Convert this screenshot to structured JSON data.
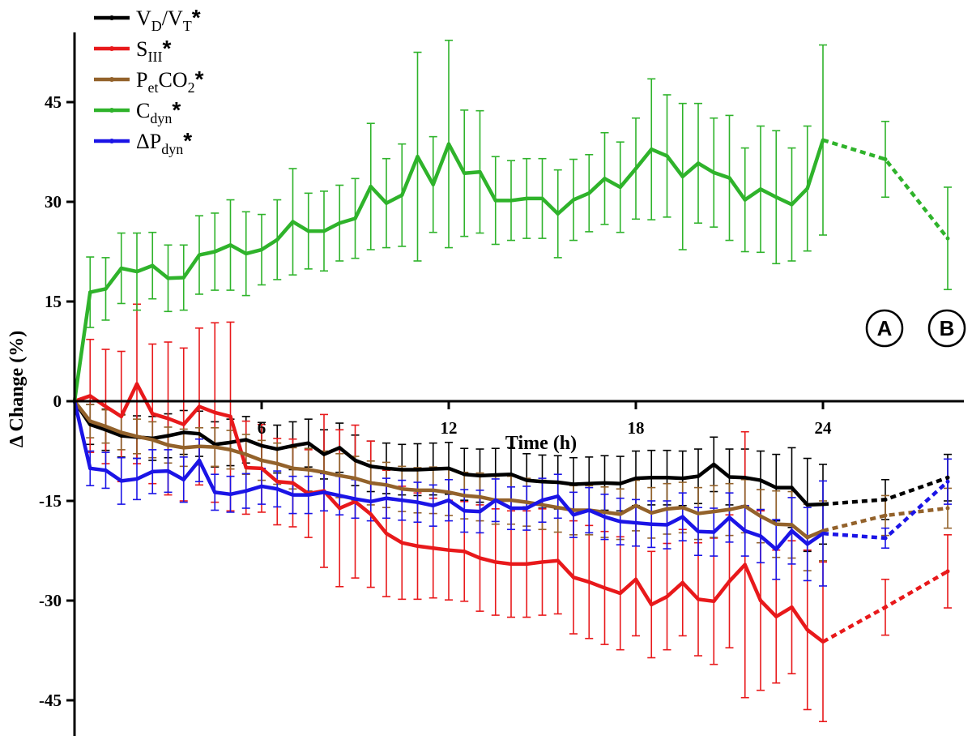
{
  "chart_data": {
    "type": "line",
    "xlabel": "Time (h)",
    "ylabel": "Δ Change (%)",
    "xlim": [
      0,
      28.5
    ],
    "ylim": [
      -50,
      57
    ],
    "x_ticks": [
      6,
      12,
      18,
      24
    ],
    "y_ticks": [
      -45,
      -30,
      -15,
      0,
      15,
      30,
      45
    ],
    "legend_position": "top-left",
    "x": [
      0,
      0.5,
      1,
      1.5,
      2,
      2.5,
      3,
      3.5,
      4,
      4.5,
      5,
      5.5,
      6,
      6.5,
      7,
      7.5,
      8,
      8.5,
      9,
      9.5,
      10,
      10.5,
      11,
      11.5,
      12,
      12.5,
      13,
      13.5,
      14,
      14.5,
      15,
      15.5,
      16,
      16.5,
      17,
      17.5,
      18,
      18.5,
      19,
      19.5,
      20,
      20.5,
      21,
      21.5,
      22,
      22.5,
      23,
      23.5,
      24
    ],
    "extension_x": [
      24,
      26,
      28
    ],
    "markers": [
      {
        "label": "A",
        "x": 26
      },
      {
        "label": "B",
        "x": 28
      }
    ],
    "series": [
      {
        "name": "VD/VT",
        "label": {
          "main": "V",
          "sub1": "D",
          "mid": "/V",
          "sub2": "T",
          "star": "*"
        },
        "color": "#000000",
        "values": [
          0,
          -3.5,
          -4.3,
          -5.2,
          -5.4,
          -5.6,
          -5.2,
          -4.7,
          -4.9,
          -6.5,
          -6.2,
          -5.8,
          -6.7,
          -7.2,
          -6.7,
          -6.3,
          -8.0,
          -7.0,
          -8.9,
          -9.8,
          -10.1,
          -10.3,
          -10.3,
          -10.2,
          -10.1,
          -11.0,
          -11.2,
          -11.1,
          -11.0,
          -11.9,
          -12.1,
          -12.2,
          -12.5,
          -12.4,
          -12.3,
          -12.4,
          -11.6,
          -11.5,
          -11.5,
          -11.6,
          -11.3,
          -9.5,
          -11.4,
          -11.5,
          -11.9,
          -13.0,
          -13.0,
          -15.6,
          -15.5
        ],
        "errors": [
          0,
          3.0,
          3.1,
          3.2,
          3.2,
          3.3,
          3.3,
          3.3,
          3.4,
          3.4,
          3.5,
          3.5,
          3.5,
          3.6,
          3.6,
          3.6,
          3.7,
          3.7,
          3.8,
          3.8,
          3.8,
          3.8,
          3.9,
          3.9,
          3.9,
          3.9,
          4.0,
          4.0,
          4.0,
          4.0,
          4.0,
          4.0,
          4.0,
          4.0,
          4.1,
          4.1,
          4.1,
          4.1,
          4.1,
          4.1,
          4.1,
          4.1,
          4.2,
          4.3,
          4.4,
          5.0,
          6.0,
          7.0,
          6.0
        ],
        "extension_values": [
          -15.5,
          -14.8,
          -11.5
        ],
        "extension_errors": [
          6.0,
          3.0,
          3.5
        ]
      },
      {
        "name": "SIII",
        "label": {
          "main": "S",
          "sub1": "III",
          "mid": "",
          "sub2": "",
          "star": "*"
        },
        "color": "#e8191b",
        "values": [
          0,
          0.8,
          -0.8,
          -2.3,
          2.6,
          -1.9,
          -2.6,
          -3.5,
          -0.8,
          -1.7,
          -2.3,
          -10.0,
          -10.1,
          -12.1,
          -12.3,
          -13.9,
          -13.5,
          -16.1,
          -15.1,
          -17.0,
          -19.9,
          -21.3,
          -21.8,
          -22.1,
          -22.4,
          -22.6,
          -23.6,
          -24.2,
          -24.5,
          -24.5,
          -24.2,
          -24.0,
          -26.5,
          -27.2,
          -28.1,
          -28.9,
          -26.8,
          -30.6,
          -29.4,
          -27.3,
          -29.8,
          -30.1,
          -27.1,
          -24.6,
          -30.0,
          -32.4,
          -31.0,
          -34.4,
          -36.2
        ],
        "errors": [
          0,
          8.5,
          8.6,
          9.8,
          12.0,
          10.5,
          11.5,
          11.5,
          11.8,
          13.5,
          14.2,
          7.0,
          6.6,
          6.5,
          6.6,
          6.6,
          11.5,
          11.8,
          11.5,
          11.0,
          9.5,
          8.5,
          8.0,
          7.5,
          7.5,
          7.5,
          8.0,
          8.0,
          8.0,
          8.0,
          8.0,
          8.0,
          8.5,
          8.5,
          8.5,
          8.5,
          8.5,
          8.0,
          8.0,
          8.0,
          8.5,
          9.5,
          10.0,
          20.0,
          13.5,
          10.0,
          10.0,
          12.0,
          12.0
        ],
        "extension_values": [
          -36.2,
          -31.0,
          -25.6
        ],
        "extension_errors": [
          12.0,
          4.2,
          5.5
        ]
      },
      {
        "name": "PetCO2",
        "label": {
          "main": "P",
          "sub1": "et",
          "mid": "CO",
          "sub2": "2",
          "star": "*"
        },
        "color": "#93622b",
        "values": [
          0,
          -3.0,
          -3.8,
          -4.7,
          -5.3,
          -5.8,
          -6.6,
          -7.0,
          -6.8,
          -6.9,
          -7.3,
          -8.0,
          -8.9,
          -9.4,
          -10.1,
          -10.3,
          -10.7,
          -11.2,
          -11.6,
          -12.3,
          -12.6,
          -13.2,
          -13.4,
          -13.4,
          -13.7,
          -14.2,
          -14.4,
          -14.9,
          -14.9,
          -15.2,
          -15.6,
          -16.0,
          -16.4,
          -16.4,
          -16.7,
          -17.0,
          -15.7,
          -16.8,
          -16.2,
          -16.0,
          -16.9,
          -16.6,
          -16.3,
          -15.8,
          -17.3,
          -18.5,
          -18.6,
          -20.5,
          -19.5
        ],
        "errors": [
          0,
          2.5,
          2.5,
          2.6,
          2.6,
          2.7,
          2.7,
          2.8,
          2.8,
          2.9,
          2.9,
          3.0,
          3.0,
          3.1,
          3.1,
          3.2,
          3.2,
          3.3,
          3.3,
          3.3,
          3.4,
          3.4,
          3.4,
          3.5,
          3.5,
          3.5,
          3.6,
          3.6,
          3.6,
          3.6,
          3.7,
          3.7,
          3.7,
          3.7,
          3.8,
          3.8,
          3.8,
          3.8,
          3.8,
          3.8,
          3.9,
          3.9,
          3.9,
          4.0,
          4.0,
          5.0,
          5.0,
          5.0,
          4.5
        ],
        "extension_values": [
          -19.5,
          -17.2,
          -16.1
        ],
        "extension_errors": [
          4.5,
          3.0,
          3.0
        ]
      },
      {
        "name": "Cdyn",
        "label": {
          "main": "C",
          "sub1": "dyn",
          "mid": "",
          "sub2": "",
          "star": "*"
        },
        "color": "#2fb32b",
        "values": [
          0,
          16.4,
          16.9,
          20.0,
          19.5,
          20.4,
          18.5,
          18.6,
          22.0,
          22.5,
          23.5,
          22.2,
          22.8,
          24.3,
          27.0,
          25.6,
          25.6,
          26.8,
          27.5,
          32.3,
          29.8,
          31.0,
          36.8,
          32.6,
          38.7,
          34.3,
          34.5,
          30.2,
          30.2,
          30.5,
          30.5,
          28.2,
          30.3,
          31.3,
          33.5,
          32.2,
          35.0,
          37.9,
          36.9,
          33.8,
          35.8,
          34.4,
          33.6,
          30.3,
          31.9,
          30.7,
          29.6,
          32.0,
          39.3
        ],
        "errors": [
          0,
          5.3,
          4.7,
          5.3,
          5.8,
          5.0,
          5.0,
          4.9,
          5.9,
          5.8,
          6.8,
          6.3,
          5.3,
          6.0,
          8.0,
          5.7,
          6.0,
          5.7,
          6.0,
          9.5,
          6.7,
          7.7,
          15.7,
          7.2,
          15.6,
          9.5,
          9.2,
          6.6,
          6.0,
          6.0,
          6.0,
          6.6,
          6.1,
          5.8,
          6.9,
          6.8,
          7.6,
          10.6,
          9.2,
          11.0,
          9.0,
          8.2,
          9.4,
          7.8,
          9.5,
          10.0,
          8.5,
          9.4,
          14.3
        ],
        "extension_values": [
          39.3,
          36.4,
          24.5
        ],
        "extension_errors": [
          14.3,
          5.7,
          7.7
        ]
      },
      {
        "name": "ΔPdyn",
        "label": {
          "main": "ΔP",
          "sub1": "dyn",
          "mid": "",
          "sub2": "",
          "star": "*"
        },
        "color": "#1b14e6",
        "values": [
          0,
          -10.1,
          -10.4,
          -12.0,
          -11.7,
          -10.6,
          -10.5,
          -11.8,
          -8.9,
          -13.7,
          -14.0,
          -13.5,
          -12.8,
          -13.2,
          -14.1,
          -14.1,
          -13.7,
          -14.2,
          -14.7,
          -15.1,
          -14.6,
          -14.9,
          -15.2,
          -15.7,
          -14.9,
          -16.5,
          -16.6,
          -14.9,
          -16.1,
          -16.1,
          -14.9,
          -14.3,
          -17.1,
          -16.4,
          -17.4,
          -18.1,
          -18.3,
          -18.5,
          -18.6,
          -17.4,
          -19.6,
          -19.7,
          -17.5,
          -19.5,
          -20.3,
          -22.3,
          -19.5,
          -21.5,
          -19.9
        ],
        "errors": [
          0,
          2.6,
          2.7,
          3.5,
          3.1,
          3.3,
          3.2,
          3.4,
          3.2,
          2.7,
          2.7,
          2.6,
          2.7,
          2.7,
          2.8,
          2.8,
          2.8,
          2.9,
          2.9,
          2.9,
          3.0,
          3.0,
          3.0,
          3.1,
          3.1,
          3.2,
          3.2,
          3.2,
          3.2,
          3.3,
          3.3,
          3.3,
          3.4,
          3.4,
          3.4,
          3.5,
          3.5,
          3.5,
          3.6,
          3.6,
          3.6,
          3.6,
          3.7,
          3.8,
          4.0,
          4.5,
          5.0,
          5.5,
          7.9
        ],
        "extension_values": [
          -19.9,
          -20.6,
          -12.1
        ],
        "extension_errors": [
          7.9,
          1.5,
          3.4
        ]
      }
    ]
  }
}
